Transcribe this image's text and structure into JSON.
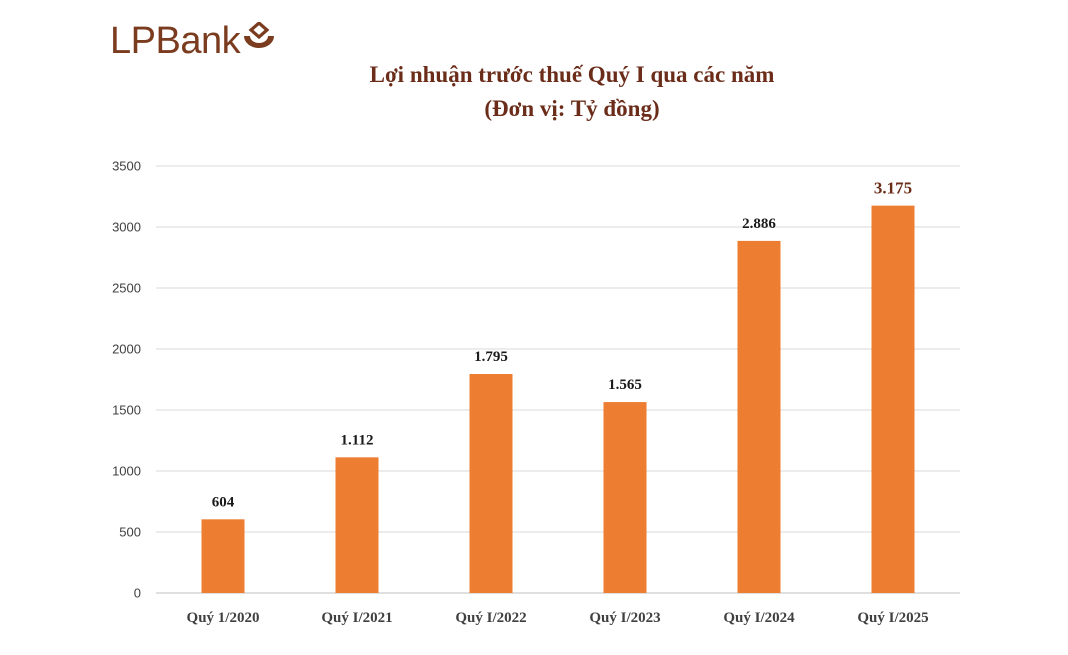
{
  "brand": {
    "name": "LPBank",
    "color": "#7a3b1e"
  },
  "chart_data": {
    "type": "bar",
    "title": "Lợi nhuận trước thuế Quý I qua các năm",
    "subtitle": "(Đơn vị: Tỷ đồng)",
    "categories": [
      "Quý 1/2020",
      "Quý I/2021",
      "Quý I/2022",
      "Quý I/2023",
      "Quý I/2024",
      "Quý I/2025"
    ],
    "values": [
      604,
      1112,
      1795,
      1565,
      2886,
      3175
    ],
    "data_labels": [
      "604",
      "1.112",
      "1.795",
      "1.565",
      "2.886",
      "3.175"
    ],
    "yticks": [
      "0",
      "500",
      "1000",
      "1500",
      "2000",
      "2500",
      "3000",
      "3500"
    ],
    "ylim": [
      0,
      3500
    ],
    "grid": true,
    "bar_color": "#ed7d31"
  }
}
